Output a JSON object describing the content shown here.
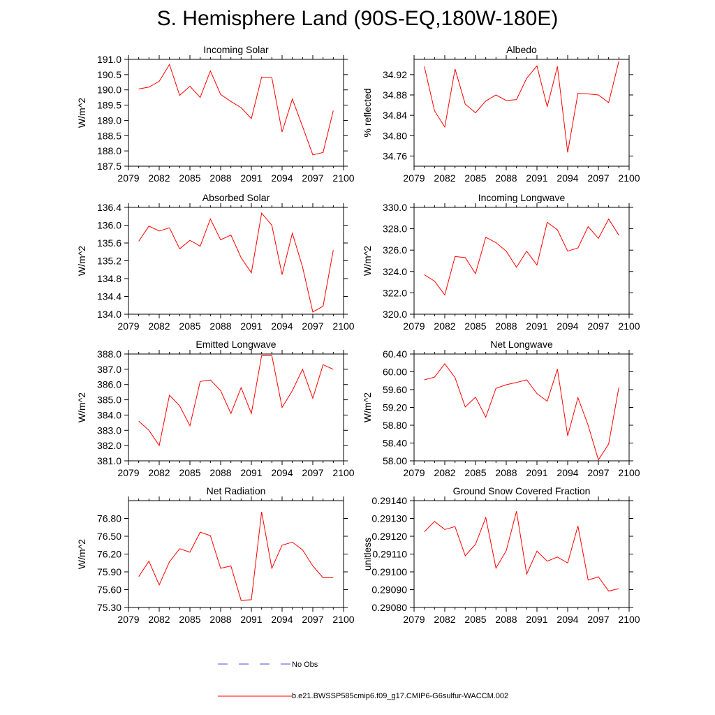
{
  "title": "S. Hemisphere Land (90S-EQ,180W-180E)",
  "legend": {
    "obs_label": "No Obs",
    "model_label": "b.e21.BWSSP585cmip6.f09_g17.CMIP6-G6sulfur-WACCM.002",
    "obs_color": "#4b4bd8",
    "model_color": "#ff0000"
  },
  "chart_data": [
    {
      "type": "line",
      "title": "Incoming Solar",
      "ylabel": "W/m^2",
      "xlim": [
        2079,
        2100
      ],
      "ylim": [
        187.5,
        191.0
      ],
      "xticks": [
        "2079",
        "2082",
        "2085",
        "2088",
        "2091",
        "2094",
        "2097",
        "2100"
      ],
      "yticks": [
        "187.5",
        "188.0",
        "188.5",
        "189.0",
        "189.5",
        "190.0",
        "190.5",
        "191.0"
      ],
      "series": [
        {
          "x": [
            2080,
            2081,
            2082,
            2083,
            2084,
            2085,
            2086,
            2087,
            2088,
            2089,
            2090,
            2091,
            2092,
            2093,
            2094,
            2095,
            2096,
            2097,
            2098,
            2099
          ],
          "y": [
            190.03,
            190.09,
            190.28,
            190.83,
            189.82,
            190.12,
            189.75,
            190.62,
            189.85,
            189.62,
            189.42,
            189.06,
            190.42,
            190.4,
            188.62,
            189.7,
            188.8,
            187.87,
            187.95,
            189.32
          ]
        }
      ]
    },
    {
      "type": "line",
      "title": "Albedo",
      "ylabel": "% reflected",
      "xlim": [
        2079,
        2100
      ],
      "ylim": [
        34.74,
        34.95
      ],
      "xticks": [
        "2079",
        "2082",
        "2085",
        "2088",
        "2091",
        "2094",
        "2097",
        "2100"
      ],
      "yticks": [
        "34.76",
        "34.80",
        "34.84",
        "34.88",
        "34.92"
      ],
      "series": [
        {
          "x": [
            2080,
            2081,
            2082,
            2083,
            2084,
            2085,
            2086,
            2087,
            2088,
            2089,
            2090,
            2091,
            2092,
            2093,
            2094,
            2095,
            2096,
            2097,
            2098,
            2099
          ],
          "y": [
            34.936,
            34.849,
            34.817,
            34.931,
            34.862,
            34.845,
            34.868,
            34.88,
            34.869,
            34.871,
            34.913,
            34.937,
            34.857,
            34.936,
            34.767,
            34.883,
            34.882,
            34.88,
            34.865,
            34.946
          ]
        }
      ]
    },
    {
      "type": "line",
      "title": "Absorbed Solar",
      "ylabel": "W/m^2",
      "xlim": [
        2079,
        2100
      ],
      "ylim": [
        134.0,
        136.4
      ],
      "xticks": [
        "2079",
        "2082",
        "2085",
        "2088",
        "2091",
        "2094",
        "2097",
        "2100"
      ],
      "yticks": [
        "134.0",
        "134.4",
        "134.8",
        "135.2",
        "135.6",
        "136.0",
        "136.4"
      ],
      "series": [
        {
          "x": [
            2080,
            2081,
            2082,
            2083,
            2084,
            2085,
            2086,
            2087,
            2088,
            2089,
            2090,
            2091,
            2092,
            2093,
            2094,
            2095,
            2096,
            2097,
            2098,
            2099
          ],
          "y": [
            135.64,
            135.98,
            135.87,
            135.94,
            135.47,
            135.66,
            135.53,
            136.14,
            135.67,
            135.78,
            135.27,
            134.93,
            136.27,
            136.0,
            134.89,
            135.82,
            135.06,
            134.05,
            134.18,
            135.44
          ]
        }
      ]
    },
    {
      "type": "line",
      "title": "Incoming Longwave",
      "ylabel": "W/m^2",
      "xlim": [
        2079,
        2100
      ],
      "ylim": [
        320.0,
        330.0
      ],
      "xticks": [
        "2079",
        "2082",
        "2085",
        "2088",
        "2091",
        "2094",
        "2097",
        "2100"
      ],
      "yticks": [
        "320.0",
        "322.0",
        "324.0",
        "326.0",
        "328.0",
        "330.0"
      ],
      "series": [
        {
          "x": [
            2080,
            2081,
            2082,
            2083,
            2084,
            2085,
            2086,
            2087,
            2088,
            2089,
            2090,
            2091,
            2092,
            2093,
            2094,
            2095,
            2096,
            2097,
            2098,
            2099
          ],
          "y": [
            323.7,
            323.1,
            321.8,
            325.4,
            325.3,
            323.8,
            327.2,
            326.7,
            325.9,
            324.4,
            325.9,
            324.6,
            328.6,
            327.9,
            325.9,
            326.2,
            328.2,
            327.1,
            328.9,
            327.4
          ]
        }
      ]
    },
    {
      "type": "line",
      "title": "Emitted Longwave",
      "ylabel": "W/m^2",
      "xlim": [
        2079,
        2100
      ],
      "ylim": [
        381.0,
        388.0
      ],
      "xticks": [
        "2079",
        "2082",
        "2085",
        "2088",
        "2091",
        "2094",
        "2097",
        "2100"
      ],
      "yticks": [
        "381.0",
        "382.0",
        "383.0",
        "384.0",
        "385.0",
        "386.0",
        "387.0",
        "388.0"
      ],
      "series": [
        {
          "x": [
            2080,
            2081,
            2082,
            2083,
            2084,
            2085,
            2086,
            2087,
            2088,
            2089,
            2090,
            2091,
            2092,
            2093,
            2094,
            2095,
            2096,
            2097,
            2098,
            2099
          ],
          "y": [
            383.6,
            383.0,
            382.0,
            385.3,
            384.6,
            383.3,
            386.2,
            386.3,
            385.6,
            384.1,
            385.8,
            384.1,
            387.9,
            387.9,
            384.5,
            385.6,
            387.0,
            385.1,
            387.3,
            387.0
          ]
        }
      ]
    },
    {
      "type": "line",
      "title": "Net Longwave",
      "ylabel": "W/m^2",
      "xlim": [
        2079,
        2100
      ],
      "ylim": [
        58.0,
        60.4
      ],
      "xticks": [
        "2079",
        "2082",
        "2085",
        "2088",
        "2091",
        "2094",
        "2097",
        "2100"
      ],
      "yticks": [
        "58.00",
        "58.40",
        "58.80",
        "59.20",
        "59.60",
        "60.00",
        "60.40"
      ],
      "series": [
        {
          "x": [
            2080,
            2081,
            2082,
            2083,
            2084,
            2085,
            2086,
            2087,
            2088,
            2089,
            2090,
            2091,
            2092,
            2093,
            2094,
            2095,
            2096,
            2097,
            2098,
            2099
          ],
          "y": [
            59.82,
            59.88,
            60.18,
            59.87,
            59.21,
            59.43,
            58.98,
            59.63,
            59.71,
            59.76,
            59.82,
            59.51,
            59.34,
            60.06,
            58.56,
            59.42,
            58.8,
            58.02,
            58.38,
            59.65
          ]
        }
      ]
    },
    {
      "type": "line",
      "title": "Net Radiation",
      "ylabel": "W/m^2",
      "xlim": [
        2079,
        2100
      ],
      "ylim": [
        75.3,
        77.1
      ],
      "xticks": [
        "2079",
        "2082",
        "2085",
        "2088",
        "2091",
        "2094",
        "2097",
        "2100"
      ],
      "yticks": [
        "75.30",
        "75.60",
        "75.90",
        "76.20",
        "76.50",
        "76.80"
      ],
      "series": [
        {
          "x": [
            2080,
            2081,
            2082,
            2083,
            2084,
            2085,
            2086,
            2087,
            2088,
            2089,
            2090,
            2091,
            2092,
            2093,
            2094,
            2095,
            2096,
            2097,
            2098,
            2099
          ],
          "y": [
            75.82,
            76.08,
            75.68,
            76.07,
            76.29,
            76.23,
            76.57,
            76.51,
            75.96,
            76.0,
            75.42,
            75.43,
            76.91,
            75.96,
            76.35,
            76.4,
            76.27,
            76.0,
            75.8,
            75.8
          ]
        }
      ]
    },
    {
      "type": "line",
      "title": "Ground Snow Covered Fraction",
      "ylabel": "unitless",
      "xlim": [
        2079,
        2100
      ],
      "ylim": [
        0.2908,
        0.2914
      ],
      "xticks": [
        "2079",
        "2082",
        "2085",
        "2088",
        "2091",
        "2094",
        "2097",
        "2100"
      ],
      "yticks": [
        "0.29080",
        "0.29090",
        "0.29100",
        "0.29110",
        "0.29120",
        "0.29130",
        "0.29140"
      ],
      "series": [
        {
          "x": [
            2080,
            2081,
            2082,
            2083,
            2084,
            2085,
            2086,
            2087,
            2088,
            2089,
            2090,
            2091,
            2092,
            2093,
            2094,
            2095,
            2096,
            2097,
            2098,
            2099
          ],
          "y": [
            0.291225,
            0.291283,
            0.291238,
            0.291254,
            0.29109,
            0.291155,
            0.291305,
            0.291021,
            0.291119,
            0.29134,
            0.290988,
            0.291116,
            0.29106,
            0.291083,
            0.29105,
            0.291258,
            0.290954,
            0.290972,
            0.290892,
            0.290906
          ]
        }
      ]
    }
  ]
}
